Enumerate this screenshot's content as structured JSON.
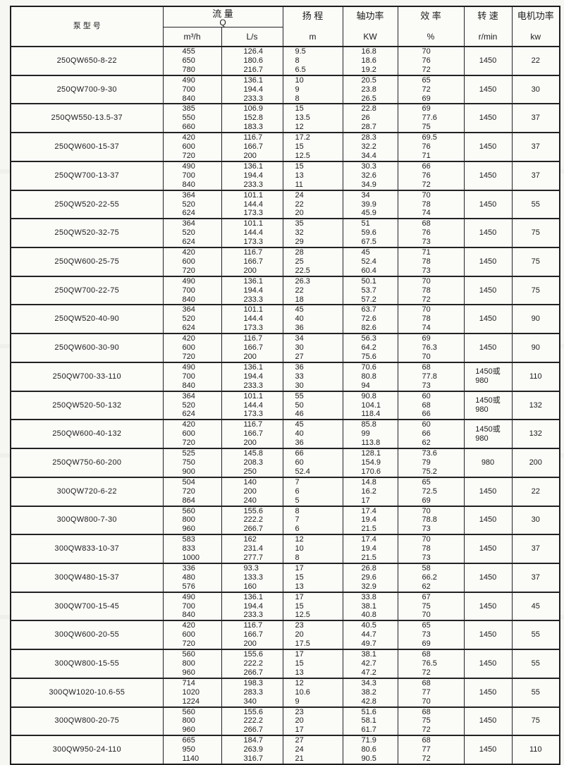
{
  "table": {
    "headers": {
      "model": "泵 型 号",
      "flow_title": "流  量",
      "flow_sub": "Q",
      "flow_unit_m3h": "m³/h",
      "flow_unit_ls": "L/s",
      "head_title": "扬  程",
      "head_unit": "m",
      "shaft_title": "轴功率",
      "shaft_unit": "KW",
      "eff_title": "效  率",
      "eff_unit": "%",
      "speed_title": "转  速",
      "speed_unit": "r/min",
      "motor_title": "电机功率",
      "motor_unit": "kw"
    },
    "rows": [
      {
        "model": "250QW650-8-22",
        "flow_m3h": [
          "455",
          "650",
          "780"
        ],
        "flow_ls": [
          "126.4",
          "180.6",
          "216.7"
        ],
        "head": [
          "9.5",
          "8",
          "6.5"
        ],
        "shaft_kw": [
          "16.8",
          "18.6",
          "19.2"
        ],
        "eff": [
          "70",
          "76",
          "72"
        ],
        "speed": [
          "1450"
        ],
        "motor": "22"
      },
      {
        "model": "250QW700-9-30",
        "flow_m3h": [
          "490",
          "700",
          "840"
        ],
        "flow_ls": [
          "136.1",
          "194.4",
          "233.3"
        ],
        "head": [
          "10",
          "9",
          "8"
        ],
        "shaft_kw": [
          "20.5",
          "23.8",
          "26.5"
        ],
        "eff": [
          "65",
          "72",
          "69"
        ],
        "speed": [
          "1450"
        ],
        "motor": "30"
      },
      {
        "model": "250QW550-13.5-37",
        "flow_m3h": [
          "385",
          "550",
          "660"
        ],
        "flow_ls": [
          "106.9",
          "152.8",
          "183.3"
        ],
        "head": [
          "15",
          "13.5",
          "12"
        ],
        "shaft_kw": [
          "22.8",
          "26",
          "28.7"
        ],
        "eff": [
          "69",
          "77.6",
          "75"
        ],
        "speed": [
          "1450"
        ],
        "motor": "37"
      },
      {
        "model": "250QW600-15-37",
        "flow_m3h": [
          "420",
          "600",
          "720"
        ],
        "flow_ls": [
          "116.7",
          "166.7",
          "200"
        ],
        "head": [
          "17.2",
          "15",
          "12.5"
        ],
        "shaft_kw": [
          "28.3",
          "32.2",
          "34.4"
        ],
        "eff": [
          "69.5",
          "76",
          "71"
        ],
        "speed": [
          "1450"
        ],
        "motor": "37"
      },
      {
        "model": "250QW700-13-37",
        "flow_m3h": [
          "490",
          "700",
          "840"
        ],
        "flow_ls": [
          "136.1",
          "194.4",
          "233.3"
        ],
        "head": [
          "15",
          "13",
          "11"
        ],
        "shaft_kw": [
          "30.3",
          "32.6",
          "34.9"
        ],
        "eff": [
          "66",
          "76",
          "72"
        ],
        "speed": [
          "1450"
        ],
        "motor": "37"
      },
      {
        "model": "250QW520-22-55",
        "flow_m3h": [
          "364",
          "520",
          "624"
        ],
        "flow_ls": [
          "101.1",
          "144.4",
          "173.3"
        ],
        "head": [
          "24",
          "22",
          "20"
        ],
        "shaft_kw": [
          "34",
          "39.9",
          "45.9"
        ],
        "eff": [
          "70",
          "78",
          "74"
        ],
        "speed": [
          "1450"
        ],
        "motor": "55"
      },
      {
        "model": "250QW520-32-75",
        "flow_m3h": [
          "364",
          "520",
          "624"
        ],
        "flow_ls": [
          "101.1",
          "144.4",
          "173.3"
        ],
        "head": [
          "35",
          "32",
          "29"
        ],
        "shaft_kw": [
          "51",
          "59.6",
          "67.5"
        ],
        "eff": [
          "68",
          "76",
          "73"
        ],
        "speed": [
          "1450"
        ],
        "motor": "75"
      },
      {
        "model": "250QW600-25-75",
        "flow_m3h": [
          "420",
          "600",
          "720"
        ],
        "flow_ls": [
          "116.7",
          "166.7",
          "200"
        ],
        "head": [
          "28",
          "25",
          "22.5"
        ],
        "shaft_kw": [
          "45",
          "52.4",
          "60.4"
        ],
        "eff": [
          "71",
          "78",
          "73"
        ],
        "speed": [
          "1450"
        ],
        "motor": "75"
      },
      {
        "model": "250QW700-22-75",
        "flow_m3h": [
          "490",
          "700",
          "840"
        ],
        "flow_ls": [
          "136.1",
          "194.4",
          "233.3"
        ],
        "head": [
          "26.3",
          "22",
          "18"
        ],
        "shaft_kw": [
          "50.1",
          "53.7",
          "57.2"
        ],
        "eff": [
          "70",
          "78",
          "72"
        ],
        "speed": [
          "1450"
        ],
        "motor": "75"
      },
      {
        "model": "250QW520-40-90",
        "flow_m3h": [
          "364",
          "520",
          "624"
        ],
        "flow_ls": [
          "101.1",
          "144.4",
          "173.3"
        ],
        "head": [
          "45",
          "40",
          "36"
        ],
        "shaft_kw": [
          "63.7",
          "72.6",
          "82.6"
        ],
        "eff": [
          "70",
          "78",
          "74"
        ],
        "speed": [
          "1450"
        ],
        "motor": "90"
      },
      {
        "model": "250QW600-30-90",
        "flow_m3h": [
          "420",
          "600",
          "720"
        ],
        "flow_ls": [
          "116.7",
          "166.7",
          "200"
        ],
        "head": [
          "34",
          "30",
          "27"
        ],
        "shaft_kw": [
          "56.3",
          "64.2",
          "75.6"
        ],
        "eff": [
          "69",
          "76.3",
          "70"
        ],
        "speed": [
          "1450"
        ],
        "motor": "90"
      },
      {
        "model": "250QW700-33-110",
        "flow_m3h": [
          "490",
          "700",
          "840"
        ],
        "flow_ls": [
          "136.1",
          "194.4",
          "233.3"
        ],
        "head": [
          "36",
          "33",
          "30"
        ],
        "shaft_kw": [
          "70.6",
          "80.8",
          "94"
        ],
        "eff": [
          "68",
          "77.8",
          "73"
        ],
        "speed": [
          "1450或",
          "980"
        ],
        "motor": "110"
      },
      {
        "model": "250QW520-50-132",
        "flow_m3h": [
          "364",
          "520",
          "624"
        ],
        "flow_ls": [
          "101.1",
          "144.4",
          "173.3"
        ],
        "head": [
          "55",
          "50",
          "46"
        ],
        "shaft_kw": [
          "90.8",
          "104.1",
          "118.4"
        ],
        "eff": [
          "60",
          "68",
          "66"
        ],
        "speed": [
          "1450或",
          "980"
        ],
        "motor": "132"
      },
      {
        "model": "250QW600-40-132",
        "flow_m3h": [
          "420",
          "600",
          "720"
        ],
        "flow_ls": [
          "116.7",
          "166.7",
          "200"
        ],
        "head": [
          "45",
          "40",
          "36"
        ],
        "shaft_kw": [
          "85.8",
          "99",
          "113.8"
        ],
        "eff": [
          "60",
          "66",
          "62"
        ],
        "speed": [
          "1450或",
          "980"
        ],
        "motor": "132"
      },
      {
        "model": "250QW750-60-200",
        "flow_m3h": [
          "525",
          "750",
          "900"
        ],
        "flow_ls": [
          "145.8",
          "208.3",
          "250"
        ],
        "head": [
          "66",
          "60",
          "52.4"
        ],
        "shaft_kw": [
          "128.1",
          "154.9",
          "170.6"
        ],
        "eff": [
          "73.6",
          "79",
          "75.2"
        ],
        "speed": [
          "980"
        ],
        "motor": "200"
      },
      {
        "model": "300QW720-6-22",
        "flow_m3h": [
          "504",
          "720",
          "864"
        ],
        "flow_ls": [
          "140",
          "200",
          "240"
        ],
        "head": [
          "7",
          "6",
          "5"
        ],
        "shaft_kw": [
          "14.8",
          "16.2",
          "17"
        ],
        "eff": [
          "65",
          "72.5",
          "69"
        ],
        "speed": [
          "1450"
        ],
        "motor": "22"
      },
      {
        "model": "300QW800-7-30",
        "flow_m3h": [
          "560",
          "800",
          "960"
        ],
        "flow_ls": [
          "155.6",
          "222.2",
          "266.7"
        ],
        "head": [
          "8",
          "7",
          "6"
        ],
        "shaft_kw": [
          "17.4",
          "19.4",
          "21.5"
        ],
        "eff": [
          "70",
          "78.8",
          "73"
        ],
        "speed": [
          "1450"
        ],
        "motor": "30"
      },
      {
        "model": "300QW833-10-37",
        "flow_m3h": [
          "583",
          "833",
          "1000"
        ],
        "flow_ls": [
          "162",
          "231.4",
          "277.7"
        ],
        "head": [
          "12",
          "10",
          "8"
        ],
        "shaft_kw": [
          "17.4",
          "19.4",
          "21.5"
        ],
        "eff": [
          "70",
          "78",
          "73"
        ],
        "speed": [
          "1450"
        ],
        "motor": "37"
      },
      {
        "model": "300QW480-15-37",
        "flow_m3h": [
          "336",
          "480",
          "576"
        ],
        "flow_ls": [
          "93.3",
          "133.3",
          "160"
        ],
        "head": [
          "17",
          "15",
          "13"
        ],
        "shaft_kw": [
          "26.8",
          "29.6",
          "32.9"
        ],
        "eff": [
          "58",
          "66.2",
          "62"
        ],
        "speed": [
          "1450"
        ],
        "motor": "37"
      },
      {
        "model": "300QW700-15-45",
        "flow_m3h": [
          "490",
          "700",
          "840"
        ],
        "flow_ls": [
          "136.1",
          "194.4",
          "233.3"
        ],
        "head": [
          "17",
          "15",
          "12.5"
        ],
        "shaft_kw": [
          "33.8",
          "38.1",
          "40.8"
        ],
        "eff": [
          "67",
          "75",
          "70"
        ],
        "speed": [
          "1450"
        ],
        "motor": "45"
      },
      {
        "model": "300QW600-20-55",
        "flow_m3h": [
          "420",
          "600",
          "720"
        ],
        "flow_ls": [
          "116.7",
          "166.7",
          "200"
        ],
        "head": [
          "23",
          "20",
          "17.5"
        ],
        "shaft_kw": [
          "40.5",
          "44.7",
          "49.7"
        ],
        "eff": [
          "65",
          "73",
          "69"
        ],
        "speed": [
          "1450"
        ],
        "motor": "55"
      },
      {
        "model": "300QW800-15-55",
        "flow_m3h": [
          "560",
          "800",
          "960"
        ],
        "flow_ls": [
          "155.6",
          "222.2",
          "266.7"
        ],
        "head": [
          "17",
          "15",
          "13"
        ],
        "shaft_kw": [
          "38.1",
          "42.7",
          "47.2"
        ],
        "eff": [
          "68",
          "76.5",
          "72"
        ],
        "speed": [
          "1450"
        ],
        "motor": "55"
      },
      {
        "model": "300QW1020-10.6-55",
        "flow_m3h": [
          "714",
          "1020",
          "1224"
        ],
        "flow_ls": [
          "198.3",
          "283.3",
          "340"
        ],
        "head": [
          "12",
          "10.6",
          "9"
        ],
        "shaft_kw": [
          "34.3",
          "38.2",
          "42.8"
        ],
        "eff": [
          "68",
          "77",
          "70"
        ],
        "speed": [
          "1450"
        ],
        "motor": "55"
      },
      {
        "model": "300QW800-20-75",
        "flow_m3h": [
          "560",
          "800",
          "960"
        ],
        "flow_ls": [
          "155.6",
          "222.2",
          "266.7"
        ],
        "head": [
          "23",
          "20",
          "17"
        ],
        "shaft_kw": [
          "51.6",
          "58.1",
          "61.7"
        ],
        "eff": [
          "68",
          "75",
          "72"
        ],
        "speed": [
          "1450"
        ],
        "motor": "75"
      },
      {
        "model": "300QW950-24-110",
        "flow_m3h": [
          "665",
          "950",
          "1140"
        ],
        "flow_ls": [
          "184.7",
          "263.9",
          "316.7"
        ],
        "head": [
          "27",
          "24",
          "21"
        ],
        "shaft_kw": [
          "71.9",
          "80.6",
          "90.5"
        ],
        "eff": [
          "68",
          "77",
          "72"
        ],
        "speed": [
          "1450"
        ],
        "motor": "110"
      }
    ]
  }
}
